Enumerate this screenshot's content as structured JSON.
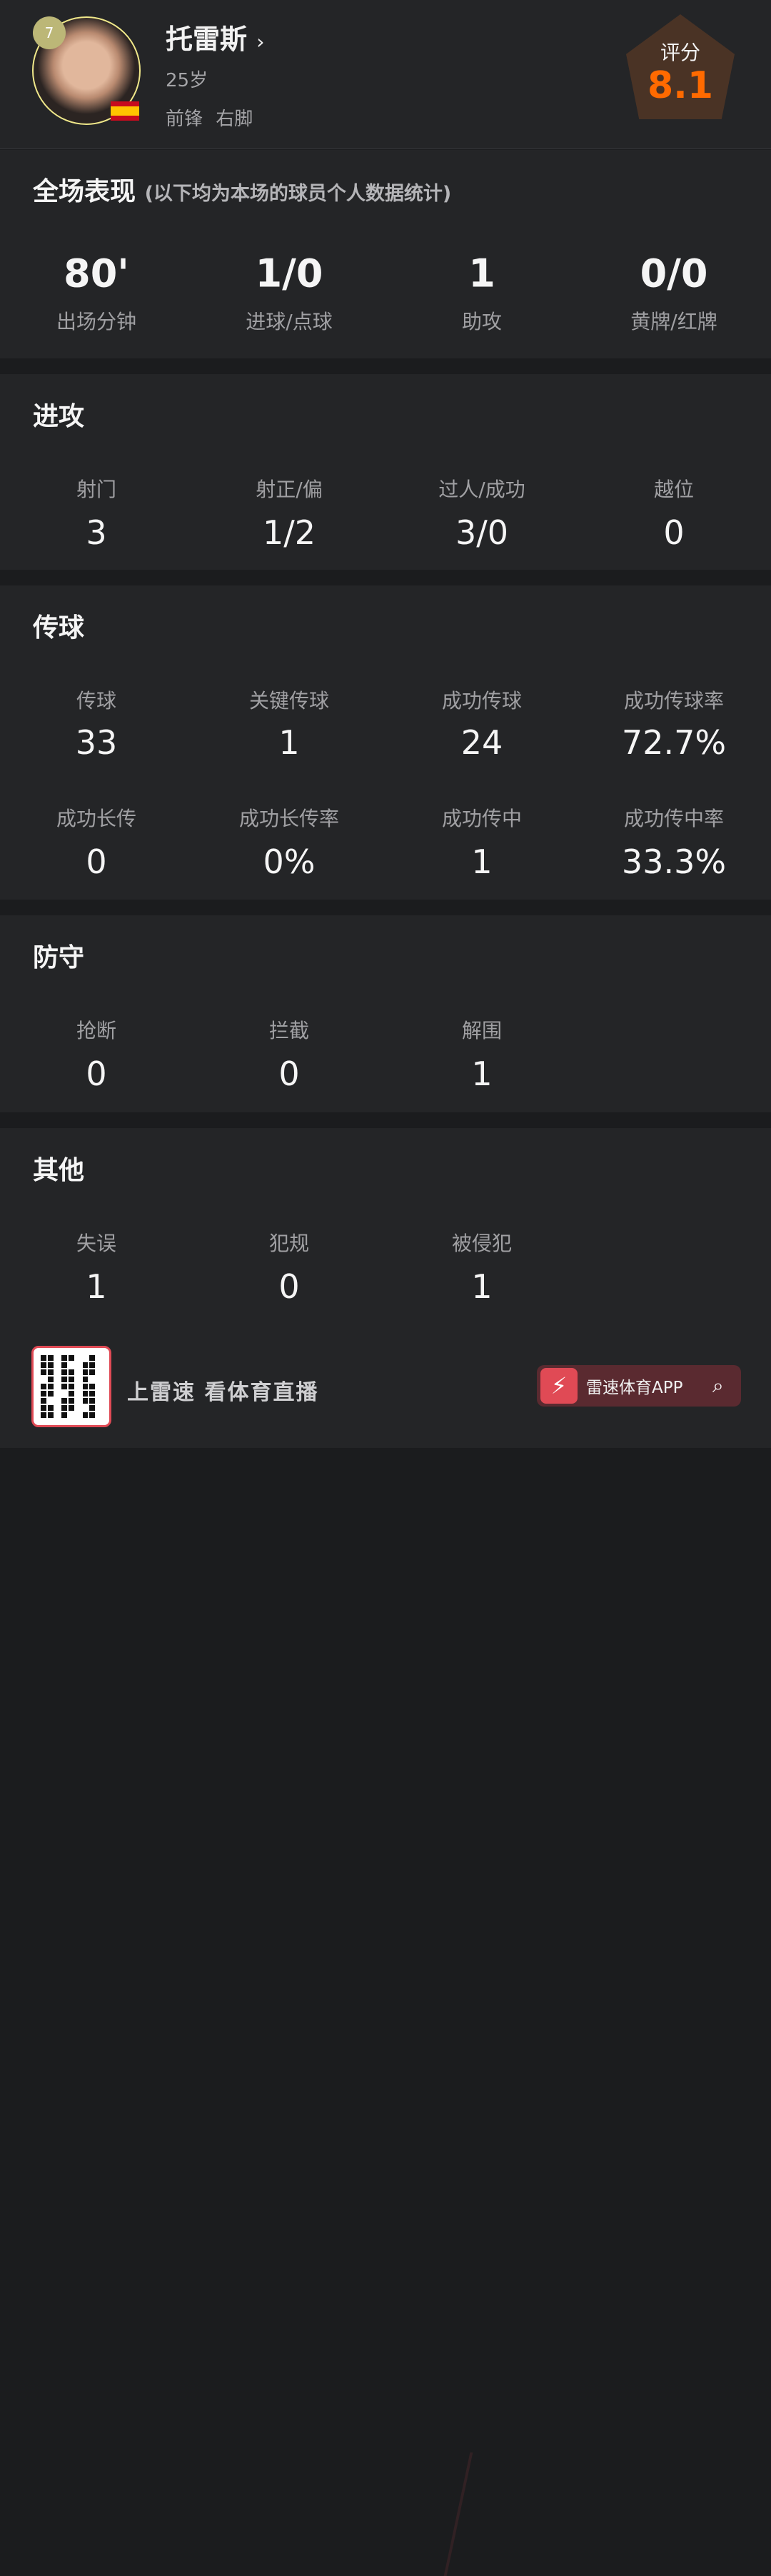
{
  "player": {
    "number": "7",
    "name": "托雷斯",
    "arrow": "›",
    "age": "25岁",
    "position": "前锋",
    "foot": "右脚",
    "rating_label": "评分",
    "rating": "8.1",
    "rating_color": "#ff6a00"
  },
  "overall": {
    "title": "全场表现",
    "note": "(以下均为本场的球员个人数据统计)",
    "stats": [
      {
        "value": "80'",
        "label": "出场分钟"
      },
      {
        "value": "1/0",
        "label": "进球/点球"
      },
      {
        "value": "1",
        "label": "助攻"
      },
      {
        "value": "0/0",
        "label": "黄牌/红牌"
      }
    ]
  },
  "attack": {
    "title": "进攻",
    "stats": [
      {
        "label": "射门",
        "value": "3"
      },
      {
        "label": "射正/偏",
        "value": "1/2"
      },
      {
        "label": "过人/成功",
        "value": "3/0"
      },
      {
        "label": "越位",
        "value": "0"
      }
    ]
  },
  "passing": {
    "title": "传球",
    "stats": [
      {
        "label": "传球",
        "value": "33"
      },
      {
        "label": "关键传球",
        "value": "1"
      },
      {
        "label": "成功传球",
        "value": "24"
      },
      {
        "label": "成功传球率",
        "value": "72.7%"
      },
      {
        "label": "成功长传",
        "value": "0"
      },
      {
        "label": "成功长传率",
        "value": "0%"
      },
      {
        "label": "成功传中",
        "value": "1"
      },
      {
        "label": "成功传中率",
        "value": "33.3%"
      }
    ]
  },
  "defense": {
    "title": "防守",
    "stats": [
      {
        "label": "抢断",
        "value": "0"
      },
      {
        "label": "拦截",
        "value": "0"
      },
      {
        "label": "解围",
        "value": "1"
      }
    ]
  },
  "other": {
    "title": "其他",
    "stats": [
      {
        "label": "失误",
        "value": "1"
      },
      {
        "label": "犯规",
        "value": "0"
      },
      {
        "label": "被侵犯",
        "value": "1"
      }
    ]
  },
  "footer": {
    "slogan": "上雷速 看体育直播",
    "app_label": "雷速体育APP",
    "brand_color": "#e04a55"
  }
}
